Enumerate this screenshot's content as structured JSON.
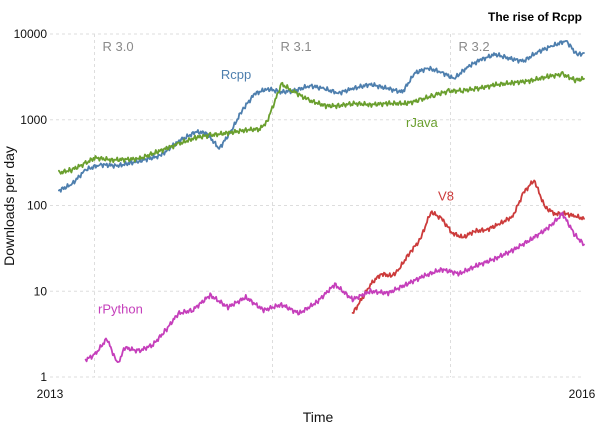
{
  "chart_data": {
    "type": "line",
    "title": "The rise of Rcpp",
    "xlabel": "Time",
    "ylabel": "Downloads per day",
    "y_scale": "log",
    "ylim": [
      1,
      10000
    ],
    "xlim": [
      2013,
      2016
    ],
    "x_ticks": [
      "2013",
      "2016"
    ],
    "y_ticks": [
      {
        "value": 1,
        "label": "1"
      },
      {
        "value": 10,
        "label": "10"
      },
      {
        "value": 100,
        "label": "100"
      },
      {
        "value": 1000,
        "label": "1000"
      },
      {
        "value": 10000,
        "label": "10000"
      }
    ],
    "grid": true,
    "legend": "inline labels",
    "annotations": [
      {
        "x": 2013.25,
        "label": "R 3.0"
      },
      {
        "x": 2014.25,
        "label": "R 3.1"
      },
      {
        "x": 2015.25,
        "label": "R 3.2"
      }
    ],
    "series": [
      {
        "name": "Rcpp",
        "color": "#4e7fae",
        "label_x": 2013.96,
        "label_y": 3000,
        "x": [
          2013.05,
          2013.12,
          2013.2,
          2013.28,
          2013.38,
          2013.5,
          2013.62,
          2013.72,
          2013.82,
          2013.88,
          2013.95,
          2014.02,
          2014.08,
          2014.15,
          2014.22,
          2014.3,
          2014.38,
          2014.46,
          2014.54,
          2014.62,
          2014.7,
          2014.8,
          2014.9,
          2014.98,
          2015.05,
          2015.12,
          2015.2,
          2015.27,
          2015.35,
          2015.42,
          2015.5,
          2015.58,
          2015.66,
          2015.74,
          2015.82,
          2015.9,
          2015.96,
          2016.0
        ],
        "y": [
          150,
          175,
          260,
          300,
          290,
          330,
          380,
          560,
          720,
          700,
          460,
          750,
          1300,
          2000,
          2300,
          2100,
          2200,
          2500,
          2300,
          2050,
          2300,
          2600,
          2300,
          2100,
          3500,
          4000,
          3600,
          3000,
          4200,
          5000,
          5800,
          5200,
          4800,
          6200,
          7200,
          8400,
          5700,
          6000
        ]
      },
      {
        "name": "rJava",
        "color": "#6a9f2e",
        "label_x": 2015.0,
        "label_y": 820,
        "x": [
          2013.05,
          2013.12,
          2013.2,
          2013.25,
          2013.35,
          2013.5,
          2013.6,
          2013.72,
          2013.82,
          2013.9,
          2014.0,
          2014.1,
          2014.18,
          2014.22,
          2014.3,
          2014.36,
          2014.45,
          2014.55,
          2014.62,
          2014.7,
          2014.8,
          2014.9,
          2015.0,
          2015.08,
          2015.16,
          2015.24,
          2015.32,
          2015.4,
          2015.5,
          2015.6,
          2015.7,
          2015.8,
          2015.88,
          2015.95,
          2016.0
        ],
        "y": [
          240,
          260,
          310,
          360,
          340,
          350,
          420,
          520,
          620,
          660,
          700,
          760,
          780,
          960,
          2600,
          2200,
          1700,
          1450,
          1450,
          1550,
          1500,
          1550,
          1550,
          1700,
          1950,
          2150,
          2200,
          2300,
          2550,
          2700,
          2850,
          3200,
          3400,
          2900,
          3000
        ]
      },
      {
        "name": "V8",
        "color": "#cc3b3b",
        "label_x": 2015.18,
        "label_y": 115,
        "x": [
          2014.7,
          2014.75,
          2014.8,
          2014.86,
          2014.92,
          2014.96,
          2015.02,
          2015.08,
          2015.14,
          2015.2,
          2015.26,
          2015.32,
          2015.38,
          2015.45,
          2015.52,
          2015.6,
          2015.66,
          2015.72,
          2015.78,
          2015.84,
          2015.9,
          2015.95,
          2016.0
        ],
        "y": [
          5.5,
          8,
          12,
          16,
          15,
          18,
          28,
          40,
          85,
          70,
          48,
          42,
          50,
          52,
          60,
          75,
          140,
          200,
          95,
          80,
          80,
          75,
          70
        ]
      },
      {
        "name": "rPython",
        "color": "#c53fbb",
        "label_x": 2013.27,
        "label_y": 5.5,
        "x": [
          2013.2,
          2013.25,
          2013.32,
          2013.38,
          2013.42,
          2013.5,
          2013.58,
          2013.65,
          2013.72,
          2013.8,
          2013.9,
          2014.0,
          2014.1,
          2014.2,
          2014.3,
          2014.4,
          2014.5,
          2014.6,
          2014.7,
          2014.8,
          2014.9,
          2015.0,
          2015.1,
          2015.2,
          2015.3,
          2015.4,
          2015.5,
          2015.6,
          2015.7,
          2015.8,
          2015.88,
          2015.95,
          2016.0
        ],
        "y": [
          1.6,
          1.8,
          2.8,
          1.4,
          2.2,
          2.0,
          2.4,
          3.5,
          5.5,
          6.0,
          9.0,
          6.5,
          8.5,
          6.0,
          7.0,
          5.5,
          7.5,
          12,
          8.0,
          10,
          9.5,
          12,
          15,
          18,
          16,
          20,
          24,
          30,
          40,
          55,
          80,
          45,
          35
        ]
      }
    ]
  }
}
